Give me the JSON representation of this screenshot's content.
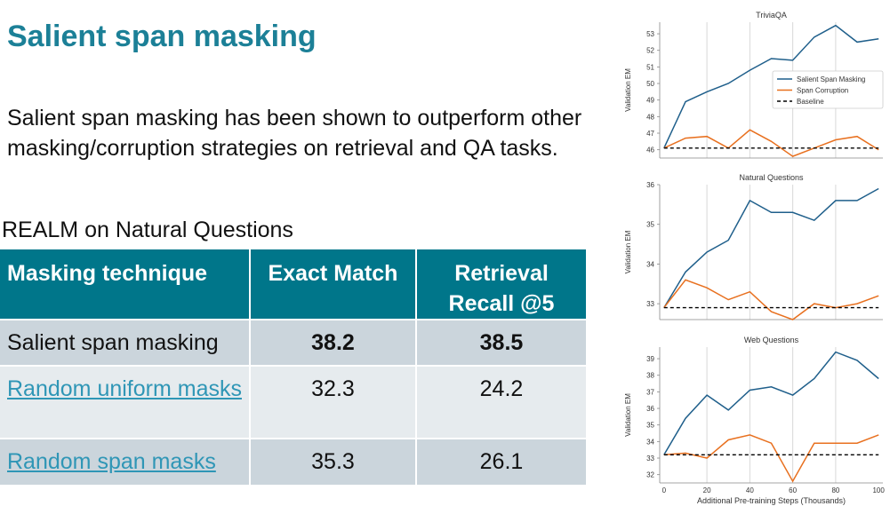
{
  "slide": {
    "title": "Salient span masking",
    "body": "Salient span masking has been shown to outperform other masking/corruption strategies on retrieval and QA tasks.",
    "table_caption": "REALM on Natural Questions"
  },
  "table": {
    "headers": [
      "Masking technique",
      "Exact Match",
      "Retrieval Recall @5"
    ],
    "rows": [
      {
        "technique": "Salient span masking",
        "exact_match": "38.2",
        "recall": "38.5",
        "bold": true,
        "link": false
      },
      {
        "technique": "Random uniform masks",
        "exact_match": "32.3",
        "recall": "24.2",
        "bold": false,
        "link": true
      },
      {
        "technique": "Random span masks",
        "exact_match": "35.3",
        "recall": "26.1",
        "bold": false,
        "link": true
      }
    ]
  },
  "colors": {
    "accent": "#1c8097",
    "header_bg": "#00768a",
    "link": "#2f96b6",
    "salient": "#1f5f8b",
    "span": "#e8701f",
    "baseline": "#000000"
  },
  "chart_data": [
    {
      "type": "line",
      "title": "TriviaQA",
      "ylabel": "Validation EM",
      "xlabel": "",
      "ylim": [
        45.5,
        53.7
      ],
      "yticks": [
        46,
        47,
        48,
        49,
        50,
        51,
        52,
        53
      ],
      "xlim": [
        -2,
        102
      ],
      "x": [
        0,
        10,
        20,
        30,
        40,
        50,
        60,
        70,
        80,
        90,
        100
      ],
      "grid": "vertical",
      "legend": "right",
      "series": [
        {
          "name": "Salient Span Masking",
          "style": "solid",
          "values": [
            46.1,
            48.9,
            49.5,
            50.0,
            50.8,
            51.5,
            51.4,
            52.8,
            53.5,
            52.5,
            52.7
          ]
        },
        {
          "name": "Span Corruption",
          "style": "solid",
          "values": [
            46.1,
            46.7,
            46.8,
            46.1,
            47.2,
            46.5,
            45.6,
            46.1,
            46.6,
            46.8,
            46.0
          ]
        },
        {
          "name": "Baseline",
          "style": "dashed",
          "values": [
            46.1,
            46.1,
            46.1,
            46.1,
            46.1,
            46.1,
            46.1,
            46.1,
            46.1,
            46.1,
            46.1
          ]
        }
      ]
    },
    {
      "type": "line",
      "title": "Natural Questions",
      "ylabel": "Validation EM",
      "xlabel": "",
      "ylim": [
        32.6,
        36.0
      ],
      "yticks": [
        33,
        34,
        35,
        36
      ],
      "xlim": [
        -2,
        102
      ],
      "x": [
        0,
        10,
        20,
        30,
        40,
        50,
        60,
        70,
        80,
        90,
        100
      ],
      "grid": "vertical",
      "series": [
        {
          "name": "Salient Span Masking",
          "style": "solid",
          "values": [
            32.9,
            33.8,
            34.3,
            34.6,
            35.6,
            35.3,
            35.3,
            35.1,
            35.6,
            35.6,
            35.9
          ]
        },
        {
          "name": "Span Corruption",
          "style": "solid",
          "values": [
            32.9,
            33.6,
            33.4,
            33.1,
            33.3,
            32.8,
            32.6,
            33.0,
            32.9,
            33.0,
            33.2
          ]
        },
        {
          "name": "Baseline",
          "style": "dashed",
          "values": [
            32.9,
            32.9,
            32.9,
            32.9,
            32.9,
            32.9,
            32.9,
            32.9,
            32.9,
            32.9,
            32.9
          ]
        }
      ]
    },
    {
      "type": "line",
      "title": "Web Questions",
      "ylabel": "Validation EM",
      "xlabel": "Additional Pre-training Steps (Thousands)",
      "ylim": [
        31.5,
        39.7
      ],
      "yticks": [
        32,
        33,
        34,
        35,
        36,
        37,
        38,
        39
      ],
      "xlim": [
        -2,
        102
      ],
      "xticks": [
        0,
        20,
        40,
        60,
        80,
        100
      ],
      "x": [
        0,
        10,
        20,
        30,
        40,
        50,
        60,
        70,
        80,
        90,
        100
      ],
      "grid": "vertical",
      "series": [
        {
          "name": "Salient Span Masking",
          "style": "solid",
          "values": [
            33.2,
            35.4,
            36.8,
            35.9,
            37.1,
            37.3,
            36.8,
            37.8,
            39.4,
            38.9,
            37.8
          ]
        },
        {
          "name": "Span Corruption",
          "style": "solid",
          "values": [
            33.2,
            33.3,
            33.0,
            34.1,
            34.4,
            33.9,
            31.6,
            33.9,
            33.9,
            33.9,
            34.4
          ]
        },
        {
          "name": "Baseline",
          "style": "dashed",
          "values": [
            33.2,
            33.2,
            33.2,
            33.2,
            33.2,
            33.2,
            33.2,
            33.2,
            33.2,
            33.2,
            33.2
          ]
        }
      ]
    }
  ]
}
